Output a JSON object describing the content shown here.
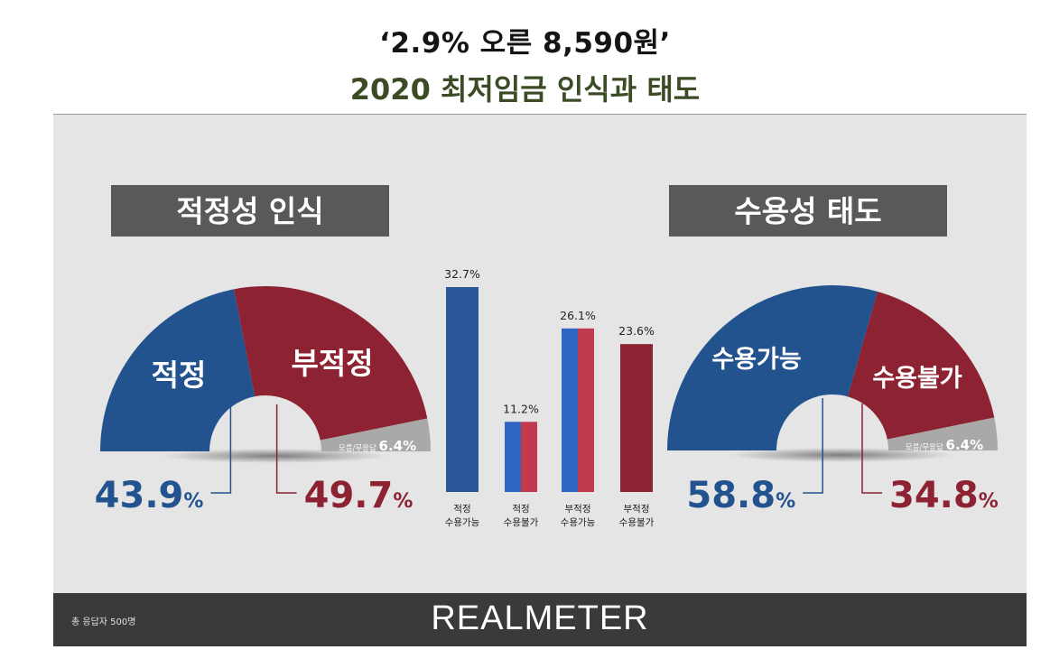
{
  "header": {
    "title": "‘2.9% 오른 8,590원’",
    "subtitle": "2020 최저임금 인식과 태도"
  },
  "footer": {
    "note": "총 응답자 500명",
    "brand": "REALMETER"
  },
  "colors": {
    "blue": "#23538f",
    "red": "#8c2232",
    "gray": "#a9a9a9",
    "label_box": "#595959",
    "panel": "#e5e5e5",
    "footer": "#3a3a3a"
  },
  "chart_data": [
    {
      "type": "pie",
      "style": "half-donut",
      "section_label": "적정성 인식",
      "slices": [
        {
          "label": "적정",
          "value": 43.9,
          "value_label": "43.9",
          "color": "#23538f"
        },
        {
          "label": "부적정",
          "value": 49.7,
          "value_label": "49.7",
          "color": "#8c2232"
        },
        {
          "label": "모름/무응답",
          "value": 6.4,
          "value_label": "6.4%",
          "color": "#a9a9a9"
        }
      ],
      "unit": "%"
    },
    {
      "type": "bar",
      "categories": [
        [
          "적정",
          "수용가능"
        ],
        [
          "적정",
          "수용불가"
        ],
        [
          "부적정",
          "수용가능"
        ],
        [
          "부적정",
          "수용불가"
        ]
      ],
      "values": [
        32.7,
        11.2,
        26.1,
        23.6
      ],
      "value_labels": [
        "32.7%",
        "11.2%",
        "26.1%",
        "23.6%"
      ],
      "bar_colors": [
        [
          "#2a5898",
          "#2a5898"
        ],
        [
          "#2f66c3",
          "#c23a4e"
        ],
        [
          "#2f66c3",
          "#c23a4e"
        ],
        [
          "#8c2232",
          "#8c2232"
        ]
      ]
    },
    {
      "type": "pie",
      "style": "half-donut",
      "section_label": "수용성 태도",
      "slices": [
        {
          "label": "수용가능",
          "value": 58.8,
          "value_label": "58.8",
          "color": "#23538f"
        },
        {
          "label": "수용불가",
          "value": 34.8,
          "value_label": "34.8",
          "color": "#8c2232"
        },
        {
          "label": "모름/무응답",
          "value": 6.4,
          "value_label": "6.4%",
          "color": "#a9a9a9"
        }
      ],
      "unit": "%"
    }
  ]
}
